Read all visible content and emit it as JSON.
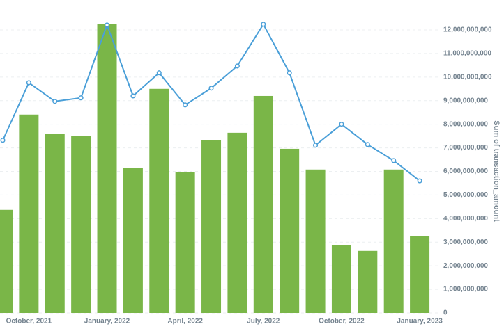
{
  "chart_data": {
    "type": "bar-line",
    "y_label": "Sum of transaction_amount",
    "categories": [
      null,
      "October, 2021",
      null,
      null,
      "January, 2022",
      null,
      null,
      "April, 2022",
      null,
      null,
      "July, 2022",
      null,
      null,
      "October, 2022",
      null,
      null,
      "January, 2023"
    ],
    "series": [
      {
        "type": "bar",
        "color": "#7ab648",
        "values": [
          4370000000,
          8410000000,
          7580000000,
          7490000000,
          12240000000,
          6140000000,
          9500000000,
          5960000000,
          7320000000,
          7640000000,
          9200000000,
          6960000000,
          6080000000,
          2880000000,
          2630000000,
          6080000000,
          3270000000
        ]
      },
      {
        "type": "line",
        "color": "#4a9fd8",
        "values": [
          7320000000,
          9760000000,
          8970000000,
          9120000000,
          12210000000,
          9200000000,
          10180000000,
          8820000000,
          9530000000,
          10470000000,
          12240000000,
          10180000000,
          7110000000,
          8000000000,
          7140000000,
          6460000000,
          5600000000
        ]
      }
    ],
    "ylim": [
      0,
      12000000000
    ],
    "yticks": [
      0,
      {
        "value": 1000000000,
        "label": "1,000,000,000"
      },
      {
        "value": 2000000000,
        "label": "2,000,000,000"
      },
      {
        "value": 3000000000,
        "label": "3,000,000,000"
      },
      {
        "value": 4000000000,
        "label": "4,000,000,000"
      },
      {
        "value": 5000000000,
        "label": "5,000,000,000"
      },
      {
        "value": 6000000000,
        "label": "6,000,000,000"
      },
      {
        "value": 7000000000,
        "label": "7,000,000,000"
      },
      {
        "value": 8000000000,
        "label": "8,000,000,000"
      },
      {
        "value": 9000000000,
        "label": "9,000,000,000"
      },
      {
        "value": 10000000000,
        "label": "10,000,000,000"
      },
      {
        "value": 11000000000,
        "label": "11,000,000,000"
      },
      {
        "value": 12000000000,
        "label": "12,000,000,000"
      }
    ],
    "grid": true
  }
}
